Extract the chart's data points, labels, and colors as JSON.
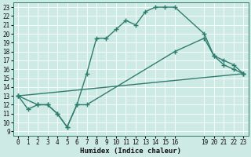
{
  "xlabel": "Humidex (Indice chaleur)",
  "bg_color": "#ceeae5",
  "line_color": "#2e7d6e",
  "grid_color": "#ffffff",
  "xlim": [
    -0.5,
    23.5
  ],
  "ylim": [
    8.5,
    23.5
  ],
  "xticks": [
    0,
    1,
    2,
    3,
    4,
    5,
    6,
    7,
    8,
    9,
    10,
    11,
    12,
    13,
    14,
    15,
    16,
    19,
    20,
    21,
    22,
    23
  ],
  "yticks": [
    9,
    10,
    11,
    12,
    13,
    14,
    15,
    16,
    17,
    18,
    19,
    20,
    21,
    22,
    23
  ],
  "curve1_x": [
    0,
    1,
    2,
    3,
    4,
    5,
    6,
    7,
    8,
    9,
    10,
    11,
    12,
    13,
    14,
    15,
    16,
    19,
    20,
    21,
    22,
    23
  ],
  "curve1_y": [
    13,
    11.5,
    12,
    12,
    11,
    9.5,
    12,
    15.5,
    19.5,
    19.5,
    20.5,
    21.5,
    21,
    22.5,
    23,
    23,
    23,
    20,
    17.5,
    17,
    16.5,
    15.5
  ],
  "curve2_x": [
    0,
    2,
    3,
    4,
    5,
    6,
    7,
    16,
    19,
    20,
    21,
    22,
    23
  ],
  "curve2_y": [
    13,
    12,
    12,
    11,
    9.5,
    12,
    12,
    18,
    19.5,
    17.5,
    16.5,
    16,
    15.5
  ],
  "curve3_x": [
    0,
    23
  ],
  "curve3_y": [
    13,
    15.5
  ],
  "marker": "+",
  "markersize": 4,
  "linewidth": 1.0
}
